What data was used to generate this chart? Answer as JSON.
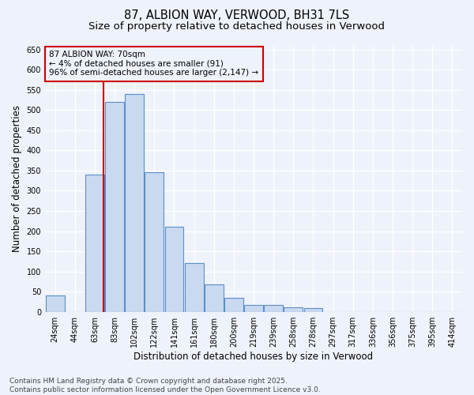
{
  "title_line1": "87, ALBION WAY, VERWOOD, BH31 7LS",
  "title_line2": "Size of property relative to detached houses in Verwood",
  "xlabel": "Distribution of detached houses by size in Verwood",
  "ylabel": "Number of detached properties",
  "categories": [
    "24sqm",
    "44sqm",
    "63sqm",
    "83sqm",
    "102sqm",
    "122sqm",
    "141sqm",
    "161sqm",
    "180sqm",
    "200sqm",
    "219sqm",
    "239sqm",
    "258sqm",
    "278sqm",
    "297sqm",
    "317sqm",
    "336sqm",
    "356sqm",
    "375sqm",
    "395sqm",
    "414sqm"
  ],
  "values": [
    40,
    0,
    340,
    520,
    540,
    345,
    210,
    120,
    68,
    35,
    17,
    17,
    12,
    10,
    0,
    0,
    0,
    0,
    0,
    0,
    0
  ],
  "bar_color": "#c9d9f0",
  "bar_edge_color": "#5b8fc9",
  "property_line_x": 2.45,
  "property_line_color": "#cc0000",
  "annotation_text": "87 ALBION WAY: 70sqm\n← 4% of detached houses are smaller (91)\n96% of semi-detached houses are larger (2,147) →",
  "annotation_box_color": "#cc0000",
  "ylim": [
    0,
    660
  ],
  "yticks": [
    0,
    50,
    100,
    150,
    200,
    250,
    300,
    350,
    400,
    450,
    500,
    550,
    600,
    650
  ],
  "footnote": "Contains HM Land Registry data © Crown copyright and database right 2025.\nContains public sector information licensed under the Open Government Licence v3.0.",
  "background_color": "#eef2fa",
  "title_fontsize": 10.5,
  "subtitle_fontsize": 9.5,
  "tick_fontsize": 7,
  "label_fontsize": 8.5,
  "footnote_fontsize": 6.5,
  "annotation_fontsize": 7.5
}
